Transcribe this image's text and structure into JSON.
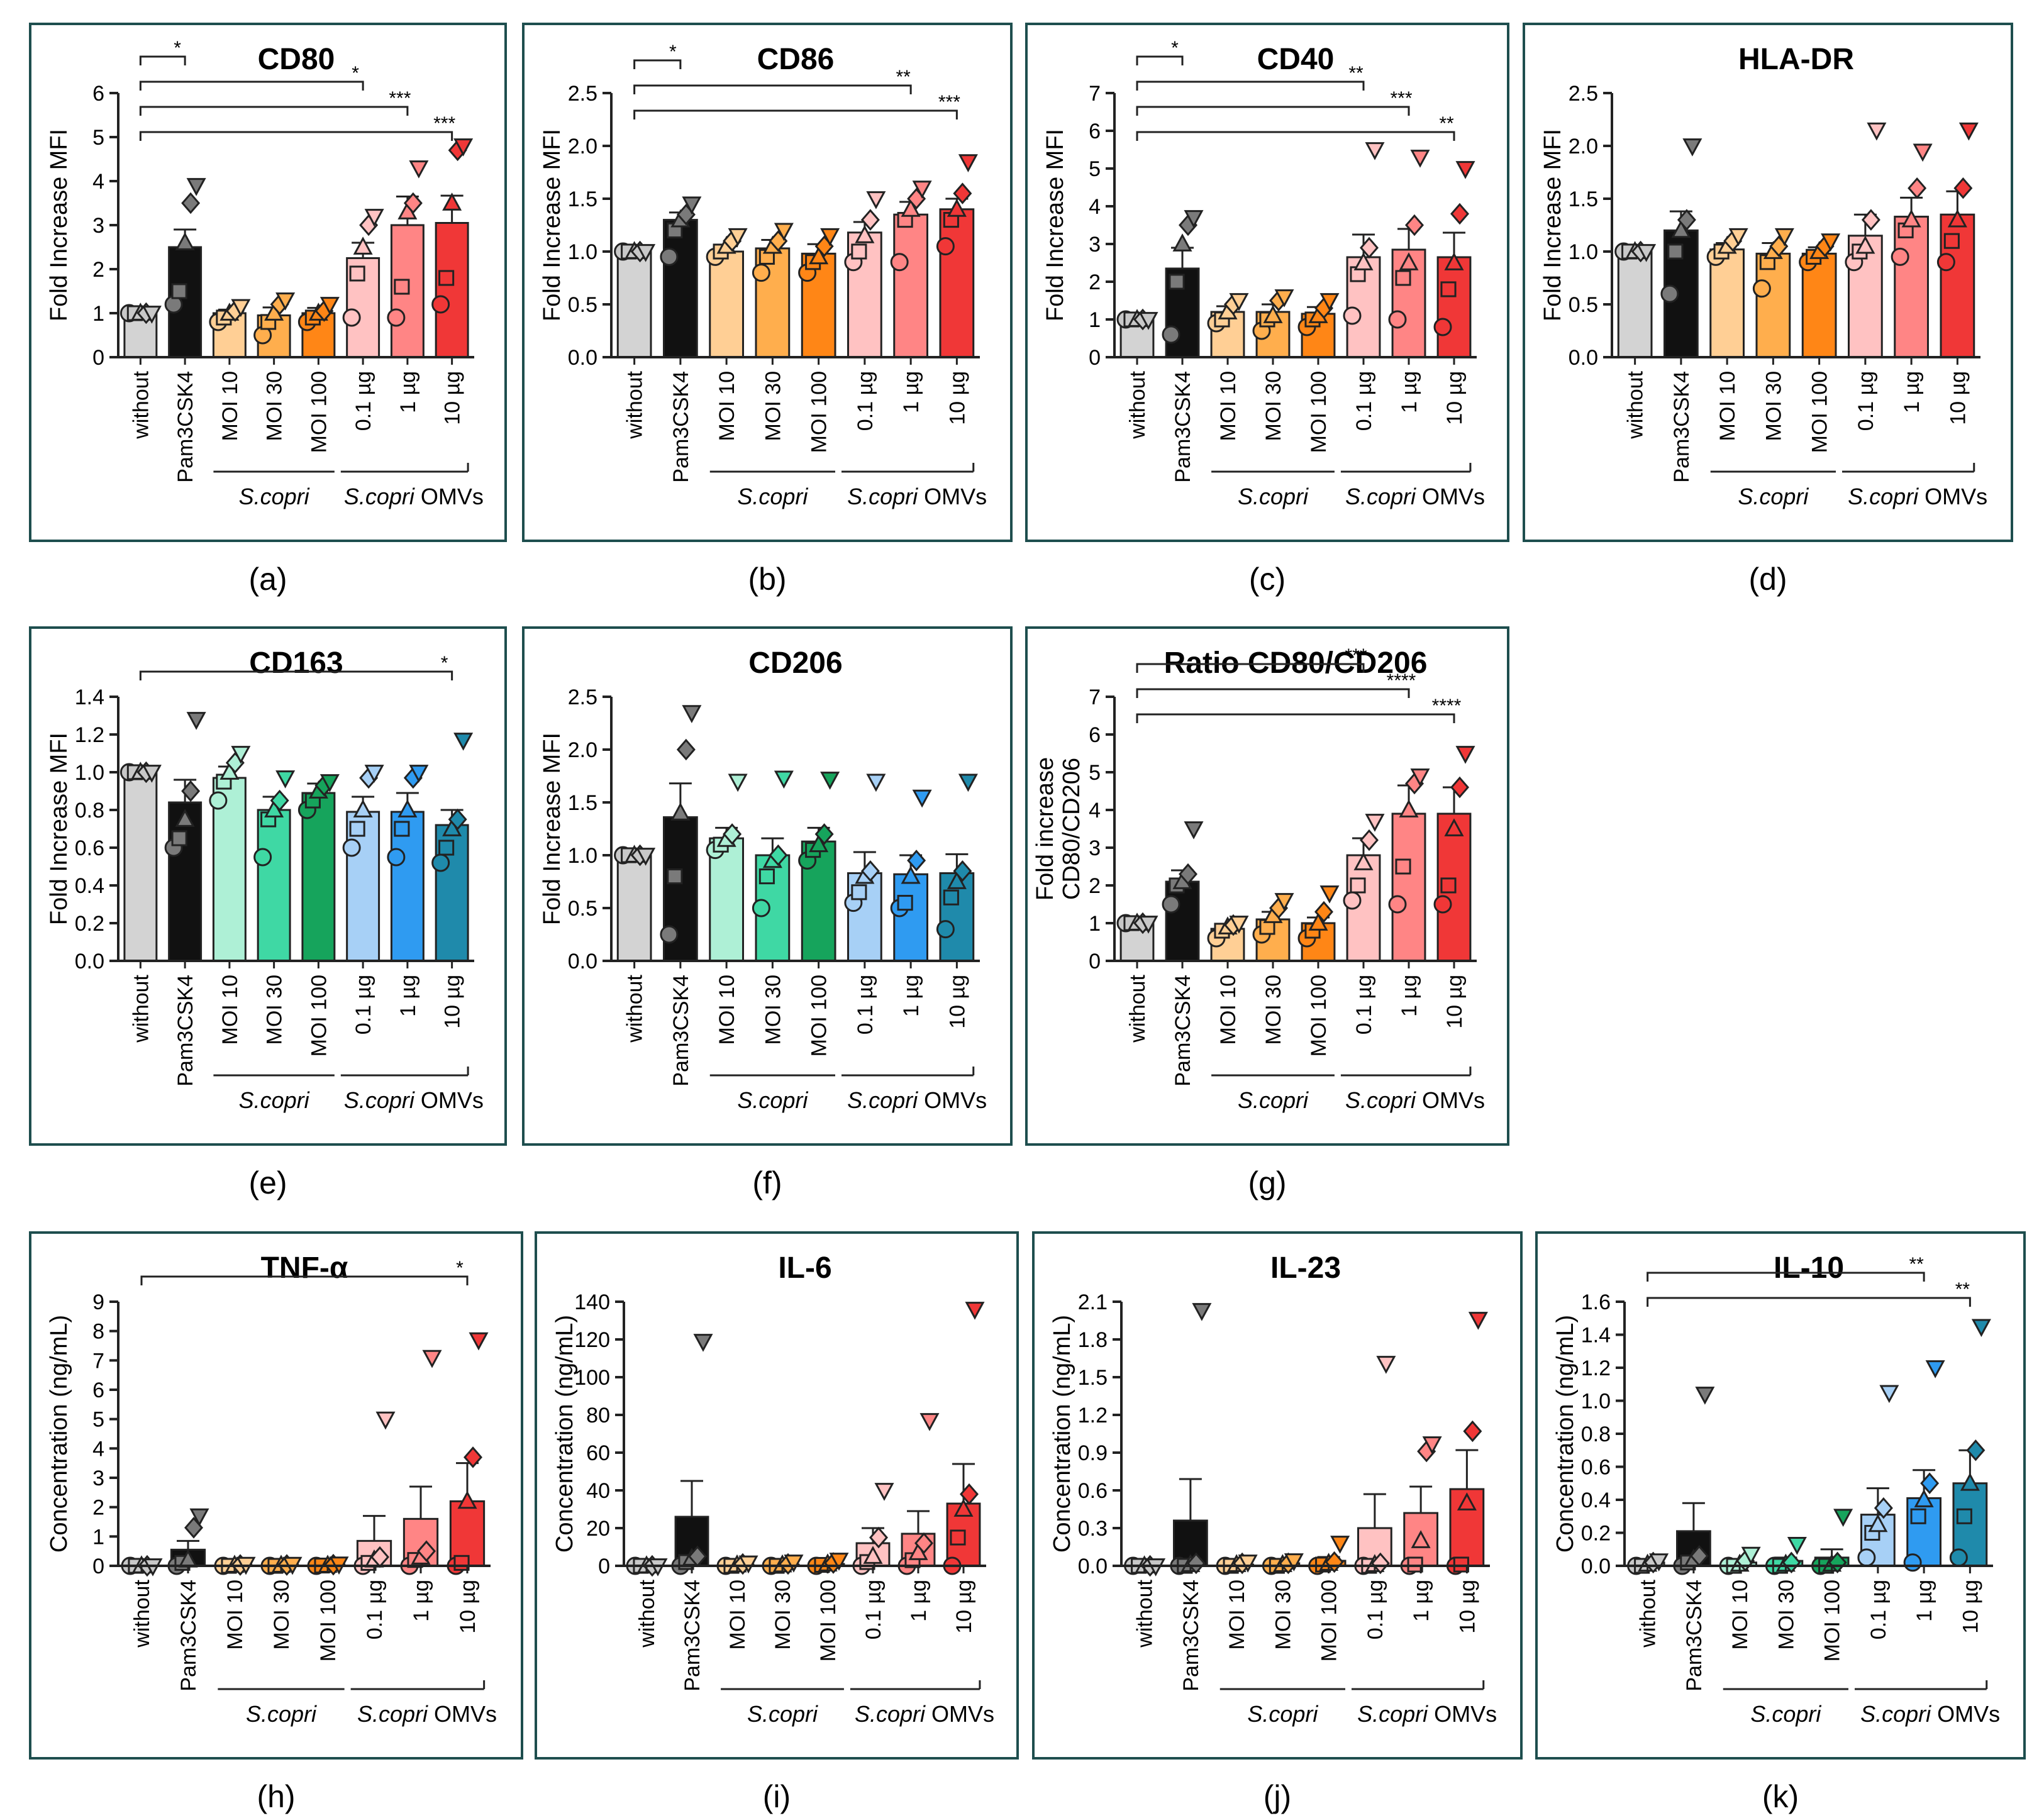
{
  "figure": {
    "group_labels": {
      "scopri": "S.copri",
      "omv_italic": "S.copri",
      "omv_suffix": " OMVs"
    },
    "colors": {
      "without": "#d3d3d3",
      "pam": "#111111",
      "orange": [
        "#ffcf95",
        "#ffae4d",
        "#ff8616"
      ],
      "red": [
        "#ffc2c2",
        "#ff8585",
        "#f03737"
      ],
      "teal": [
        "#aef0d6",
        "#3fd8a4",
        "#16a45c"
      ],
      "blue": [
        "#a7d0f6",
        "#2f9bf1",
        "#1f8aab"
      ],
      "frame": "#1e4e4e"
    }
  },
  "chart_data": [
    {
      "panel": "(a)",
      "title": "CD80",
      "type": "bar",
      "ylabel": "Fold Increase MFI",
      "ylim": [
        0,
        6
      ],
      "yticks": [
        "0",
        "1",
        "2",
        "3",
        "4",
        "5",
        "6"
      ],
      "categories": [
        "without",
        "Pam3CSK4",
        "MOI 10",
        "MOI 30",
        "MOI 100",
        "0.1 µg",
        "1 µg",
        "10 µg"
      ],
      "values": [
        1.0,
        2.5,
        1.0,
        0.95,
        1.0,
        2.25,
        3.0,
        3.05
      ],
      "sem": [
        0,
        0.4,
        0.08,
        0.18,
        0.12,
        0.35,
        0.65,
        0.62
      ],
      "palette": "orange_red",
      "points": [
        [
          1,
          1,
          1,
          1,
          1
        ],
        [
          1.2,
          1.5,
          2.6,
          3.5,
          3.9
        ],
        [
          0.8,
          0.9,
          1.0,
          1.05,
          1.15
        ],
        [
          0.5,
          0.8,
          1.0,
          1.2,
          1.3
        ],
        [
          0.8,
          0.9,
          1.0,
          1.05,
          1.2
        ],
        [
          0.9,
          1.9,
          2.5,
          3.0,
          3.2
        ],
        [
          0.9,
          1.6,
          3.3,
          3.5,
          4.3
        ],
        [
          1.2,
          1.8,
          3.5,
          4.7,
          4.8
        ]
      ],
      "significance": [
        {
          "to": 1,
          "label": "*"
        },
        {
          "to": 5,
          "label": "*"
        },
        {
          "to": 6,
          "label": "***"
        },
        {
          "to": 7,
          "label": "***"
        }
      ]
    },
    {
      "panel": "(b)",
      "title": "CD86",
      "type": "bar",
      "ylabel": "Fold Increase MFI",
      "ylim": [
        0,
        2.5
      ],
      "yticks": [
        "0.0",
        "0.5",
        "1.0",
        "1.5",
        "2.0",
        "2.5"
      ],
      "categories": [
        "without",
        "Pam3CSK4",
        "MOI 10",
        "MOI 30",
        "MOI 100",
        "0.1 µg",
        "1 µg",
        "10 µg"
      ],
      "values": [
        1.0,
        1.3,
        1.0,
        1.03,
        0.98,
        1.18,
        1.35,
        1.4
      ],
      "sem": [
        0,
        0.07,
        0.05,
        0.08,
        0.09,
        0.1,
        0.12,
        0.1
      ],
      "palette": "orange_red",
      "points": [
        [
          1,
          1,
          1,
          1,
          1
        ],
        [
          0.95,
          1.2,
          1.3,
          1.35,
          1.45
        ],
        [
          0.95,
          1.0,
          1.05,
          1.1,
          1.15
        ],
        [
          0.8,
          0.95,
          1.05,
          1.1,
          1.2
        ],
        [
          0.8,
          0.9,
          0.95,
          1.05,
          1.15
        ],
        [
          0.9,
          1.0,
          1.15,
          1.3,
          1.5
        ],
        [
          0.9,
          1.3,
          1.4,
          1.5,
          1.6
        ],
        [
          1.05,
          1.3,
          1.4,
          1.55,
          1.85
        ]
      ],
      "significance": [
        {
          "to": 1,
          "label": "*"
        },
        {
          "to": 6,
          "label": "**"
        },
        {
          "to": 7,
          "label": "***"
        }
      ]
    },
    {
      "panel": "(c)",
      "title": "CD40",
      "type": "bar",
      "ylabel": "Fold Increase MFI",
      "ylim": [
        0,
        7
      ],
      "yticks": [
        "0",
        "1",
        "2",
        "3",
        "4",
        "5",
        "6",
        "7"
      ],
      "categories": [
        "without",
        "Pam3CSK4",
        "MOI 10",
        "MOI 30",
        "MOI 100",
        "0.1 µg",
        "1 µg",
        "10 µg"
      ],
      "values": [
        1.0,
        2.35,
        1.2,
        1.2,
        1.15,
        2.65,
        2.85,
        2.65
      ],
      "sem": [
        0,
        0.55,
        0.15,
        0.2,
        0.18,
        0.6,
        0.55,
        0.65
      ],
      "palette": "orange_red",
      "points": [
        [
          1,
          1,
          1,
          1,
          1
        ],
        [
          0.6,
          2.0,
          3.0,
          3.5,
          3.7
        ],
        [
          0.9,
          1.0,
          1.2,
          1.4,
          1.5
        ],
        [
          0.7,
          1.0,
          1.1,
          1.5,
          1.6
        ],
        [
          0.8,
          1.0,
          1.1,
          1.3,
          1.5
        ],
        [
          1.1,
          2.2,
          2.5,
          2.9,
          5.5
        ],
        [
          1.0,
          2.1,
          2.5,
          3.5,
          5.3
        ],
        [
          0.8,
          1.8,
          2.5,
          3.8,
          5.0
        ]
      ],
      "significance": [
        {
          "to": 1,
          "label": "*"
        },
        {
          "to": 5,
          "label": "**"
        },
        {
          "to": 6,
          "label": "***"
        },
        {
          "to": 7,
          "label": "**"
        }
      ]
    },
    {
      "panel": "(d)",
      "title": "HLA-DR",
      "type": "bar",
      "ylabel": "Fold Increase MFI",
      "ylim": [
        0,
        2.5
      ],
      "yticks": [
        "0.0",
        "0.5",
        "1.0",
        "1.5",
        "2.0",
        "2.5"
      ],
      "categories": [
        "without",
        "Pam3CSK4",
        "MOI 10",
        "MOI 30",
        "MOI 100",
        "0.1 µg",
        "1 µg",
        "10 µg"
      ],
      "values": [
        1.0,
        1.2,
        1.02,
        0.98,
        0.98,
        1.15,
        1.33,
        1.35
      ],
      "sem": [
        0,
        0.18,
        0.06,
        0.1,
        0.06,
        0.2,
        0.18,
        0.22
      ],
      "palette": "orange_red",
      "points": [
        [
          1,
          1,
          1,
          1,
          1
        ],
        [
          0.6,
          1.0,
          1.2,
          1.3,
          2.0
        ],
        [
          0.95,
          1.0,
          1.05,
          1.1,
          1.15
        ],
        [
          0.65,
          0.9,
          1.0,
          1.05,
          1.15
        ],
        [
          0.9,
          0.95,
          1.0,
          1.05,
          1.1
        ],
        [
          0.9,
          1.0,
          1.05,
          1.3,
          2.15
        ],
        [
          0.95,
          1.2,
          1.3,
          1.6,
          1.95
        ],
        [
          0.9,
          1.1,
          1.3,
          1.6,
          2.15
        ]
      ],
      "significance": []
    },
    {
      "panel": "(e)",
      "title": "CD163",
      "type": "bar",
      "ylabel": "Fold Increase MFI",
      "ylim": [
        0,
        1.4
      ],
      "yticks": [
        "0.0",
        "0.2",
        "0.4",
        "0.6",
        "0.8",
        "1.0",
        "1.2",
        "1.4"
      ],
      "categories": [
        "without",
        "Pam3CSK4",
        "MOI 10",
        "MOI 30",
        "MOI 100",
        "0.1 µg",
        "1 µg",
        "10 µg"
      ],
      "values": [
        1.0,
        0.84,
        0.97,
        0.8,
        0.89,
        0.79,
        0.79,
        0.72
      ],
      "sem": [
        0,
        0.12,
        0.06,
        0.07,
        0.05,
        0.08,
        0.1,
        0.08
      ],
      "palette": "teal_blue",
      "points": [
        [
          1,
          1,
          1,
          1,
          1
        ],
        [
          0.6,
          0.65,
          0.75,
          0.9,
          1.28
        ],
        [
          0.85,
          0.95,
          1.0,
          1.05,
          1.1
        ],
        [
          0.55,
          0.75,
          0.8,
          0.85,
          0.97
        ],
        [
          0.8,
          0.85,
          0.9,
          0.93,
          0.95
        ],
        [
          0.6,
          0.7,
          0.8,
          0.97,
          1.0
        ],
        [
          0.55,
          0.7,
          0.8,
          0.97,
          1.0
        ],
        [
          0.52,
          0.6,
          0.7,
          0.75,
          1.17
        ]
      ],
      "significance": [
        {
          "to": 7,
          "label": "*"
        }
      ]
    },
    {
      "panel": "(f)",
      "title": "CD206",
      "type": "bar",
      "ylabel": "Fold Increase MFI",
      "ylim": [
        0,
        2.5
      ],
      "yticks": [
        "0.0",
        "0.5",
        "1.0",
        "1.5",
        "2.0",
        "2.5"
      ],
      "categories": [
        "without",
        "Pam3CSK4",
        "MOI 10",
        "MOI 30",
        "MOI 100",
        "0.1 µg",
        "1 µg",
        "10 µg"
      ],
      "values": [
        1.0,
        1.36,
        1.16,
        1.0,
        1.13,
        0.83,
        0.82,
        0.83
      ],
      "sem": [
        0,
        0.32,
        0.1,
        0.16,
        0.13,
        0.2,
        0.18,
        0.18
      ],
      "palette": "teal_blue",
      "points": [
        [
          1,
          1,
          1,
          1,
          1
        ],
        [
          0.25,
          0.8,
          1.4,
          2.0,
          2.35
        ],
        [
          1.05,
          1.1,
          1.15,
          1.2,
          1.7
        ],
        [
          0.5,
          0.8,
          0.95,
          1.0,
          1.73
        ],
        [
          0.95,
          1.05,
          1.1,
          1.2,
          1.72
        ],
        [
          0.55,
          0.65,
          0.8,
          0.85,
          1.7
        ],
        [
          0.5,
          0.55,
          0.8,
          0.95,
          1.55
        ],
        [
          0.3,
          0.6,
          0.75,
          0.85,
          1.7
        ]
      ],
      "significance": []
    },
    {
      "panel": "(g)",
      "title": "Ratio CD80/CD206",
      "type": "bar",
      "ylabel": "Fold increase",
      "ylabel2": "CD80/CD206",
      "ylim": [
        0,
        7
      ],
      "yticks": [
        "0",
        "1",
        "2",
        "3",
        "4",
        "5",
        "6",
        "7"
      ],
      "categories": [
        "without",
        "Pam3CSK4",
        "MOI 10",
        "MOI 30",
        "MOI 100",
        "0.1 µg",
        "1 µg",
        "10 µg"
      ],
      "values": [
        1.0,
        2.1,
        0.85,
        1.1,
        1.0,
        2.8,
        3.9,
        3.9
      ],
      "sem": [
        0,
        0.3,
        0.1,
        0.2,
        0.15,
        0.45,
        0.75,
        0.7
      ],
      "palette": "orange_red",
      "points": [
        [
          1,
          1,
          1,
          1,
          1
        ],
        [
          1.5,
          2.0,
          2.1,
          2.3,
          3.5
        ],
        [
          0.6,
          0.8,
          0.9,
          0.95,
          1.0
        ],
        [
          0.7,
          0.9,
          1.2,
          1.4,
          1.6
        ],
        [
          0.6,
          0.8,
          1.0,
          1.3,
          1.8
        ],
        [
          1.6,
          2.0,
          2.6,
          3.2,
          3.7
        ],
        [
          1.5,
          2.5,
          4.0,
          4.7,
          4.9
        ],
        [
          1.5,
          2.0,
          3.5,
          4.6,
          5.5
        ]
      ],
      "significance": [
        {
          "to": 5,
          "label": "***"
        },
        {
          "to": 6,
          "label": "****"
        },
        {
          "to": 7,
          "label": "****"
        }
      ]
    },
    {
      "panel": "(h)",
      "title": "TNF-α",
      "type": "bar",
      "ylabel": "Concentration (ng/mL)",
      "ylim": [
        0,
        9
      ],
      "yticks": [
        "0",
        "1",
        "2",
        "3",
        "4",
        "5",
        "6",
        "7",
        "8",
        "9"
      ],
      "categories": [
        "without",
        "Pam3CSK4",
        "MOI 10",
        "MOI 30",
        "MOI 100",
        "0.1 µg",
        "1 µg",
        "10 µg"
      ],
      "values": [
        0.0,
        0.55,
        0.02,
        0.02,
        0.03,
        0.85,
        1.6,
        2.2
      ],
      "sem": [
        0,
        0.3,
        0.01,
        0.01,
        0.01,
        0.85,
        1.1,
        1.3
      ],
      "palette": "orange_red",
      "points": [
        [
          0,
          0,
          0,
          0,
          0
        ],
        [
          0,
          0.1,
          0.2,
          1.3,
          1.7
        ],
        [
          0,
          0,
          0.02,
          0.03,
          0.05
        ],
        [
          0,
          0,
          0.02,
          0.03,
          0.05
        ],
        [
          0,
          0.01,
          0.02,
          0.04,
          0.06
        ],
        [
          0,
          0.1,
          0.2,
          0.3,
          5.0
        ],
        [
          0,
          0.2,
          0.3,
          0.5,
          7.1
        ],
        [
          0,
          0.1,
          2.2,
          3.7,
          7.7
        ]
      ],
      "significance": [
        {
          "to": 7,
          "label": "*"
        }
      ]
    },
    {
      "panel": "(i)",
      "title": "IL-6",
      "type": "bar",
      "ylabel": "Concentration (ng/mL)",
      "ylim": [
        0,
        140
      ],
      "yticks": [
        "0",
        "20",
        "40",
        "60",
        "80",
        "100",
        "120",
        "140"
      ],
      "categories": [
        "without",
        "Pam3CSK4",
        "MOI 10",
        "MOI 30",
        "MOI 100",
        "0.1 µg",
        "1 µg",
        "10 µg"
      ],
      "values": [
        0.0,
        26.0,
        0.5,
        0.5,
        1.0,
        12.0,
        17.0,
        33.0
      ],
      "sem": [
        0,
        19,
        0.3,
        0.3,
        0.5,
        8,
        12,
        21
      ],
      "palette": "orange_red",
      "points": [
        [
          0,
          0,
          0,
          0,
          0
        ],
        [
          0,
          2,
          4,
          5,
          119
        ],
        [
          0,
          0,
          0.5,
          1,
          1.5
        ],
        [
          0,
          0,
          0.5,
          1,
          2
        ],
        [
          0,
          0.5,
          1,
          1.5,
          3
        ],
        [
          0,
          2,
          5,
          15,
          40
        ],
        [
          0,
          3,
          7,
          12,
          77
        ],
        [
          0,
          15,
          30,
          38,
          136
        ]
      ],
      "significance": []
    },
    {
      "panel": "(j)",
      "title": "IL-23",
      "type": "bar",
      "ylabel": "Concentration (ng/mL)",
      "ylim": [
        0,
        2.1
      ],
      "yticks": [
        "0.0",
        "0.3",
        "0.6",
        "0.9",
        "1.2",
        "1.5",
        "1.8",
        "2.1"
      ],
      "categories": [
        "without",
        "Pam3CSK4",
        "MOI 10",
        "MOI 30",
        "MOI 100",
        "0.1 µg",
        "1 µg",
        "10 µg"
      ],
      "values": [
        0.0,
        0.36,
        0.01,
        0.02,
        0.04,
        0.3,
        0.42,
        0.61
      ],
      "sem": [
        0,
        0.33,
        0.01,
        0.01,
        0.03,
        0.27,
        0.21,
        0.31
      ],
      "palette": "orange_red",
      "points": [
        [
          0,
          0,
          0,
          0,
          0
        ],
        [
          0,
          0,
          0.01,
          0.02,
          2.03
        ],
        [
          0,
          0,
          0.01,
          0.02,
          0.03
        ],
        [
          0,
          0,
          0.01,
          0.02,
          0.04
        ],
        [
          0,
          0.01,
          0.02,
          0.03,
          0.18
        ],
        [
          0,
          0,
          0.01,
          0.02,
          1.61
        ],
        [
          0,
          0.01,
          0.2,
          0.91,
          0.97
        ],
        [
          0,
          0.01,
          0.5,
          1.07,
          1.96
        ]
      ],
      "significance": []
    },
    {
      "panel": "(k)",
      "title": "IL-10",
      "type": "bar",
      "ylabel": "Concentration (ng/mL)",
      "ylim": [
        0,
        1.6
      ],
      "yticks": [
        "0.0",
        "0.2",
        "0.4",
        "0.6",
        "0.8",
        "1.0",
        "1.2",
        "1.4",
        "1.6"
      ],
      "categories": [
        "without",
        "Pam3CSK4",
        "MOI 10",
        "MOI 30",
        "MOI 100",
        "0.1 µg",
        "1 µg",
        "10 µg"
      ],
      "values": [
        0.02,
        0.21,
        0.02,
        0.03,
        0.05,
        0.31,
        0.41,
        0.5
      ],
      "sem": [
        0.01,
        0.17,
        0.02,
        0.02,
        0.05,
        0.16,
        0.17,
        0.2
      ],
      "palette": "teal_blue",
      "points": [
        [
          0,
          0,
          0.01,
          0.02,
          0.03
        ],
        [
          0,
          0.02,
          0.04,
          0.06,
          1.04
        ],
        [
          0,
          0,
          0.01,
          0.03,
          0.07
        ],
        [
          0,
          0,
          0.01,
          0.02,
          0.13
        ],
        [
          0,
          0,
          0.01,
          0.02,
          0.3
        ],
        [
          0.05,
          0.2,
          0.25,
          0.35,
          1.05
        ],
        [
          0.02,
          0.3,
          0.4,
          0.5,
          1.2
        ],
        [
          0.05,
          0.3,
          0.5,
          0.7,
          1.45
        ]
      ],
      "significance": [
        {
          "to": 6,
          "label": "**"
        },
        {
          "to": 7,
          "label": "**"
        }
      ]
    }
  ]
}
